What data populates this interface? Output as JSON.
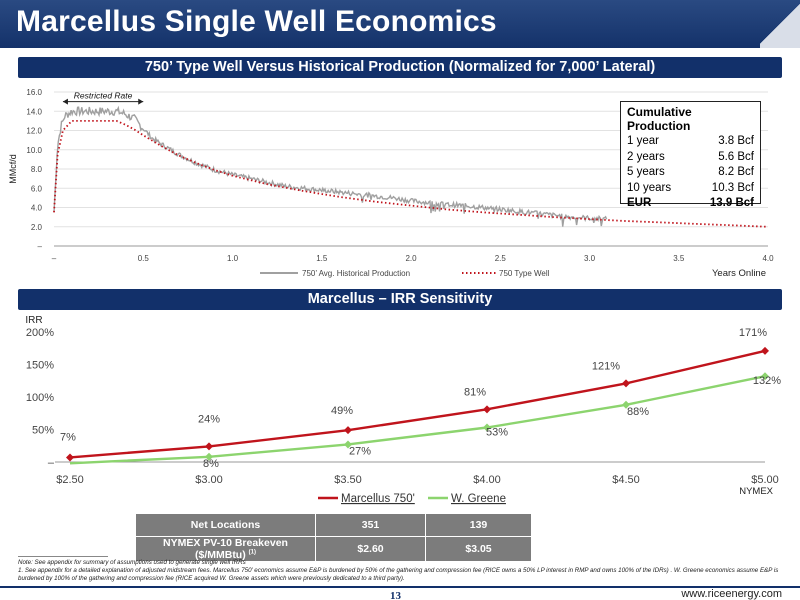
{
  "page": {
    "title": "Marcellus Single Well Economics",
    "page_number": "13",
    "website": "www.riceenergy.com"
  },
  "colors": {
    "navy": "#12306a",
    "historical": "#a0a0a0",
    "type_well": "#c0141c",
    "marcellus": "#c0141c",
    "wgreene": "#8cd46e",
    "table_bg": "#7c7c7c"
  },
  "section1": {
    "title": "750’ Type Well Versus Historical Production (Normalized for 7,000’ Lateral)"
  },
  "section2": {
    "title": "Marcellus – IRR Sensitivity"
  },
  "cumulative": {
    "title": "Cumulative Production",
    "rows": [
      {
        "label": "1 year",
        "value": "3.8 Bcf"
      },
      {
        "label": "2 years",
        "value": "5.6 Bcf"
      },
      {
        "label": "5 years",
        "value": "8.2 Bcf"
      },
      {
        "label": "10 years",
        "value": "10.3 Bcf"
      },
      {
        "label": "EUR",
        "value": "13.9 Bcf"
      }
    ]
  },
  "locations_table": {
    "rows": [
      {
        "label": "Net Locations",
        "sup": "",
        "v1": "351",
        "v2": "139"
      },
      {
        "label": "NYMEX PV-10 Breakeven ($/MMBtu)",
        "sup": "(1)",
        "v1": "$2.60",
        "v2": "$3.05"
      }
    ]
  },
  "footnotes": [
    "Note: See appendix for summary of assumptions used to generate single well IRRs",
    "1. See appendix for a detailed explanation of adjusted midstream fees. Marcellus 750’ economics assume E&P is burdened by 50% of the gathering and compression fee (RICE owns a 50% LP interest in RMP and owns 100% of the IDRs) . W. Greene economics assume E&P is burdened by 100% of the gathering and compression fee (RICE acquired W. Greene assets which were previously dedicated to a third party)."
  ],
  "chart_data": [
    {
      "type": "line",
      "title": "",
      "xlabel": "Years Online",
      "ylabel": "MMcf/d",
      "xlim": [
        0,
        4.0
      ],
      "ylim": [
        0,
        16.0
      ],
      "x_ticks": [
        "–",
        "0.5",
        "1.0",
        "1.5",
        "2.0",
        "2.5",
        "3.0",
        "3.5",
        "4.0"
      ],
      "y_ticks": [
        "–",
        "2.0",
        "4.0",
        "6.0",
        "8.0",
        "10.0",
        "12.0",
        "14.0",
        "16.0"
      ],
      "annotation": "Restricted Rate",
      "annotation_range": [
        0.05,
        0.5
      ],
      "grid": "horizontal",
      "legend": "bottom-center",
      "series": [
        {
          "name": "750’ Avg. Historical Production",
          "style": "solid",
          "x": [
            0.0,
            0.02,
            0.04,
            0.06,
            0.1,
            0.15,
            0.2,
            0.25,
            0.3,
            0.35,
            0.4,
            0.45,
            0.5,
            0.55,
            0.6,
            0.7,
            0.8,
            0.9,
            1.0,
            1.1,
            1.2,
            1.3,
            1.4,
            1.5,
            1.6,
            1.7,
            1.8,
            1.9,
            2.0,
            2.1,
            2.2,
            2.3,
            2.4,
            2.5,
            2.6,
            2.7,
            2.8,
            2.9,
            3.0,
            3.1
          ],
          "y": [
            3.5,
            10.5,
            12.5,
            13.5,
            14.0,
            14.0,
            14.0,
            14.0,
            14.0,
            14.0,
            13.7,
            13.2,
            12.2,
            11.2,
            10.6,
            9.5,
            8.6,
            7.9,
            7.4,
            7.0,
            6.6,
            6.2,
            6.0,
            5.8,
            5.6,
            5.4,
            5.2,
            5.0,
            4.7,
            4.5,
            4.3,
            4.2,
            4.0,
            3.8,
            3.6,
            3.4,
            3.2,
            3.0,
            2.9,
            2.8
          ]
        },
        {
          "name": "750 Type Well",
          "style": "dotted",
          "x": [
            0.0,
            0.02,
            0.05,
            0.1,
            0.15,
            0.2,
            0.3,
            0.35,
            0.4,
            0.45,
            0.5,
            0.6,
            0.7,
            0.8,
            0.9,
            1.0,
            1.2,
            1.4,
            1.6,
            1.8,
            2.0,
            2.2,
            2.4,
            2.6,
            2.8,
            3.0,
            3.2,
            3.4,
            3.6,
            3.8,
            4.0
          ],
          "y": [
            3.5,
            9.5,
            12.0,
            13.0,
            13.0,
            13.0,
            13.0,
            13.0,
            12.6,
            12.1,
            11.5,
            10.4,
            9.4,
            8.6,
            7.9,
            7.3,
            6.4,
            5.7,
            5.1,
            4.6,
            4.2,
            3.8,
            3.5,
            3.25,
            3.0,
            2.8,
            2.6,
            2.45,
            2.3,
            2.15,
            2.0
          ]
        }
      ]
    },
    {
      "type": "line",
      "title": "",
      "xlabel": "NYMEX",
      "ylabel": "IRR",
      "categories": [
        "$2.50",
        "$3.00",
        "$3.50",
        "$4.00",
        "$4.50",
        "$5.00"
      ],
      "ylim": [
        0,
        200
      ],
      "y_ticks": [
        "–",
        "50%",
        "100%",
        "150%",
        "200%"
      ],
      "legend": "bottom-center",
      "series": [
        {
          "name": "Marcellus 750'",
          "values": [
            7,
            24,
            49,
            81,
            121,
            171
          ],
          "labels": [
            "7%",
            "24%",
            "49%",
            "81%",
            "121%",
            "171%"
          ]
        },
        {
          "name": "W. Greene",
          "values": [
            -2,
            8,
            27,
            53,
            88,
            132
          ],
          "labels": [
            "",
            "8%",
            "27%",
            "53%",
            "88%",
            "132%"
          ]
        }
      ]
    }
  ]
}
